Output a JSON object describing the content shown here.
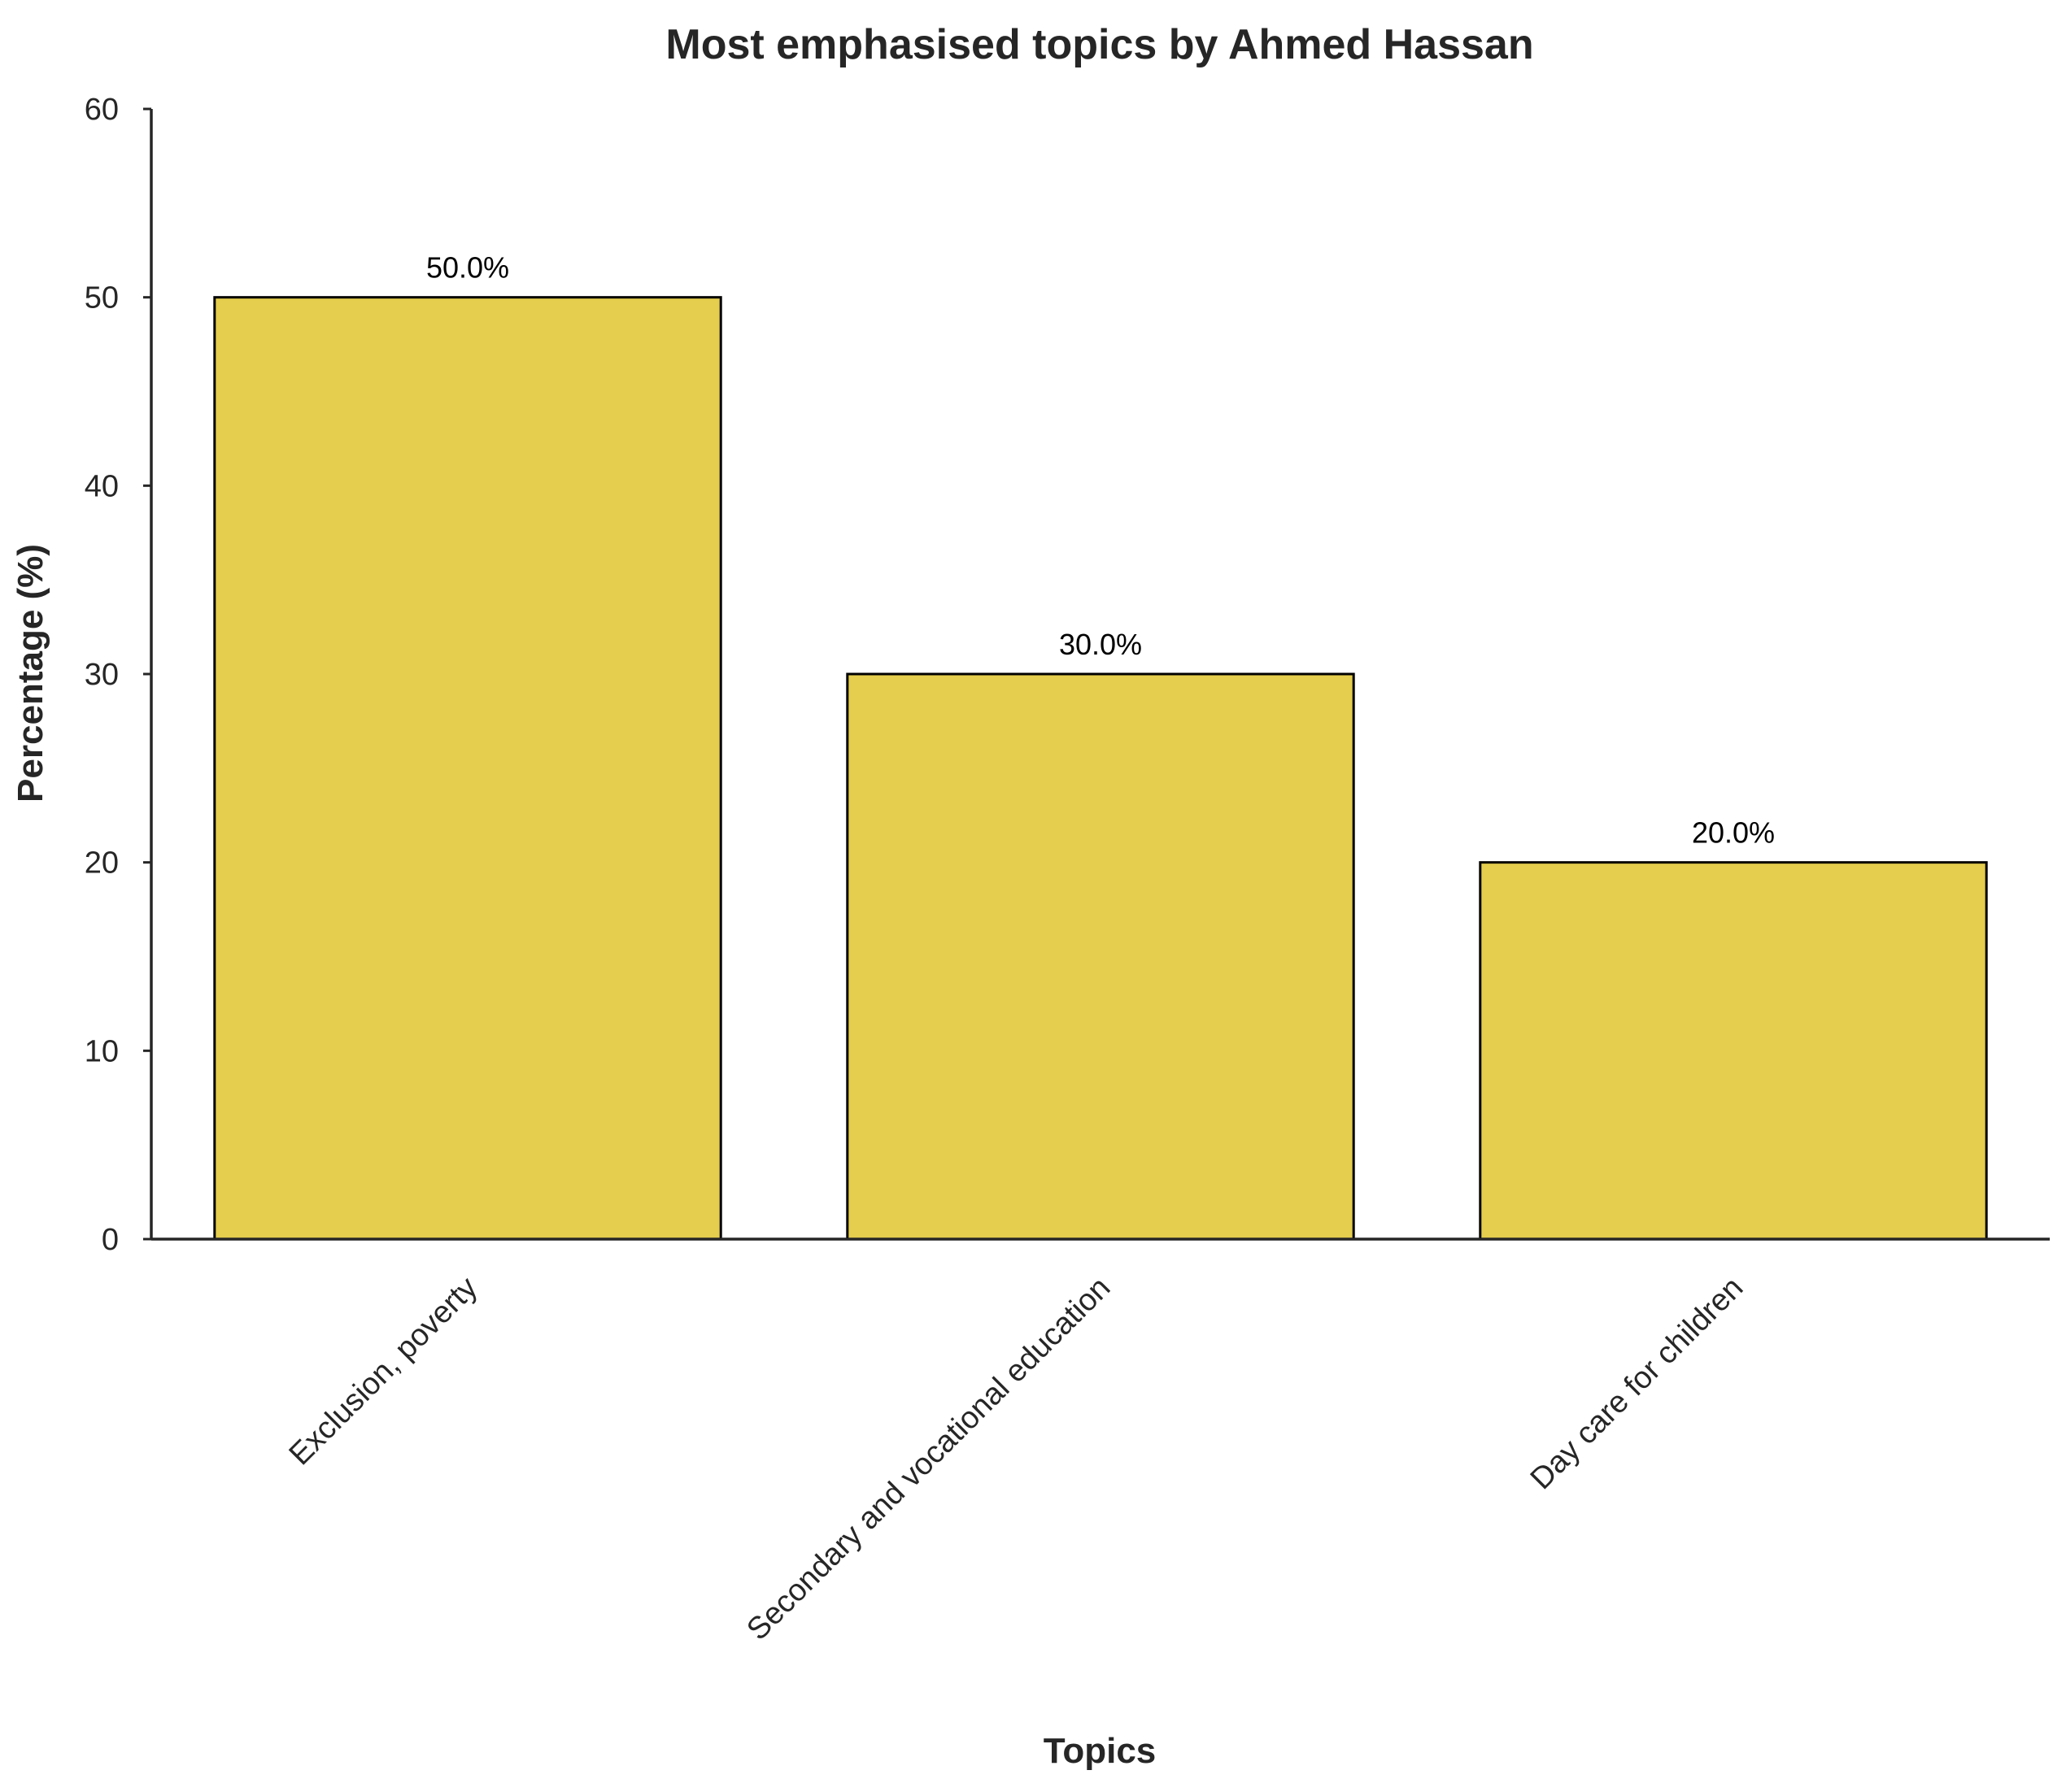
{
  "chart_data": {
    "type": "bar",
    "title": "Most emphasised topics by Ahmed Hassan",
    "xlabel": "Topics",
    "ylabel": "Percentage (%)",
    "categories": [
      "Exclusion, poverty",
      "Secondary and vocational education",
      "Day care for children"
    ],
    "values": [
      50.0,
      30.0,
      20.0
    ],
    "data_labels": [
      "50.0%",
      "30.0%",
      "20.0%"
    ],
    "ylim": [
      0,
      60
    ],
    "yticks": [
      0,
      10,
      20,
      30,
      40,
      50,
      60
    ],
    "grid": false,
    "legend": "none",
    "colors": {
      "bar_fill": "#e5cd4d",
      "bar_edge": "#000000",
      "axis": "#262626"
    }
  }
}
